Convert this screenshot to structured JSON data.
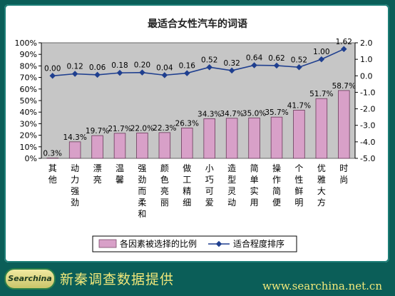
{
  "chart_data": {
    "type": "bar+line",
    "title": "最适合女性汽车的词语",
    "categories": [
      "其他",
      "动力强劲",
      "漂亮",
      "温馨",
      "强劲而柔和",
      "颜色亮丽",
      "做工精细",
      "小巧可爱",
      "造型灵动",
      "简单实用",
      "操作简便",
      "个性鲜明",
      "优雅大方",
      "时尚"
    ],
    "series": [
      {
        "name": "各因素被选择的比例",
        "type": "bar",
        "axis": "left",
        "values": [
          0.3,
          14.3,
          19.7,
          21.7,
          22.0,
          22.3,
          26.3,
          34.3,
          34.7,
          35.0,
          35.7,
          41.7,
          51.7,
          58.7
        ],
        "labels": [
          "0.3%",
          "14.3%",
          "19.7%",
          "21.7%",
          "22.0%",
          "22.3%",
          "26.3%",
          "34.3%",
          "34.7%",
          "35.0%",
          "35.7%",
          "41.7%",
          "51.7%",
          "58.7%"
        ],
        "color": "#d8a0c8"
      },
      {
        "name": "适合程度排序",
        "type": "line",
        "axis": "right",
        "values": [
          0.0,
          0.12,
          0.06,
          0.18,
          0.2,
          0.04,
          0.16,
          0.52,
          0.32,
          0.64,
          0.62,
          0.52,
          1.0,
          1.62
        ],
        "labels": [
          "0.00",
          "0.12",
          "0.06",
          "0.18",
          "0.20",
          "0.04",
          "0.16",
          "0.52",
          "0.32",
          "0.64",
          "0.62",
          "0.52",
          "1.00",
          "1.62"
        ],
        "color": "#1f3f8f"
      }
    ],
    "left_axis": {
      "ylim": [
        0,
        100
      ],
      "ticks": [
        "0%",
        "10%",
        "20%",
        "30%",
        "40%",
        "50%",
        "60%",
        "70%",
        "80%",
        "90%",
        "100%"
      ]
    },
    "right_axis": {
      "ylim": [
        -5,
        2
      ],
      "ticks": [
        "-5.0",
        "-4.0",
        "-3.0",
        "-2.0",
        "-1.0",
        "0.0",
        "1.0",
        "2.0"
      ]
    },
    "legend_position": "bottom",
    "grid": false
  },
  "footer": {
    "logo_text": "Searchina",
    "provider_text": "新秦调查数据提供",
    "website": "www.searchina.net.cn"
  },
  "colors": {
    "background": "#0b5e58",
    "plot_background": "#c6c6c6",
    "bar": "#d8a0c8",
    "line": "#1f3f8f",
    "footer_text": "#f2e87a"
  }
}
